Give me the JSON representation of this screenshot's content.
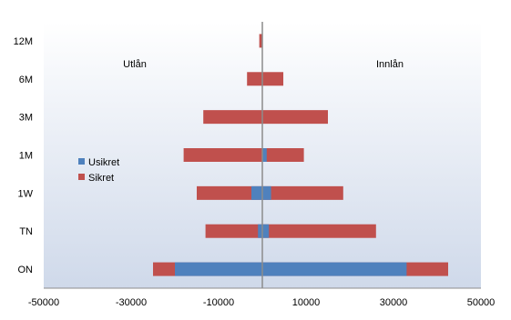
{
  "chart_data": {
    "type": "bar",
    "orientation": "horizontal",
    "stacked": true,
    "categories": [
      "ON",
      "TN",
      "1W",
      "1M",
      "3M",
      "6M",
      "12M"
    ],
    "series": [
      {
        "name": "Usikret",
        "color": "#4f81bd",
        "segments": [
          [
            -20000,
            33000
          ],
          [
            -1000,
            1500
          ],
          [
            -2500,
            2000
          ],
          [
            0,
            1000
          ],
          [
            0,
            0
          ],
          [
            0,
            0
          ],
          [
            0,
            0
          ]
        ]
      },
      {
        "name": "Sikret",
        "color": "#c0504d",
        "segments": [
          [
            -25000,
            42500
          ],
          [
            -13000,
            26000
          ],
          [
            -15000,
            18500
          ],
          [
            -18000,
            9500
          ],
          [
            -13500,
            15000
          ],
          [
            -3500,
            4800
          ],
          [
            -700,
            0
          ]
        ]
      }
    ],
    "xlim": [
      -50000,
      50000
    ],
    "xticks": [
      -50000,
      -30000,
      -10000,
      10000,
      30000,
      50000
    ],
    "annotations": {
      "left": "Utlån",
      "right": "Innlån"
    },
    "legend_position": "left",
    "background": "#dde4f0"
  }
}
